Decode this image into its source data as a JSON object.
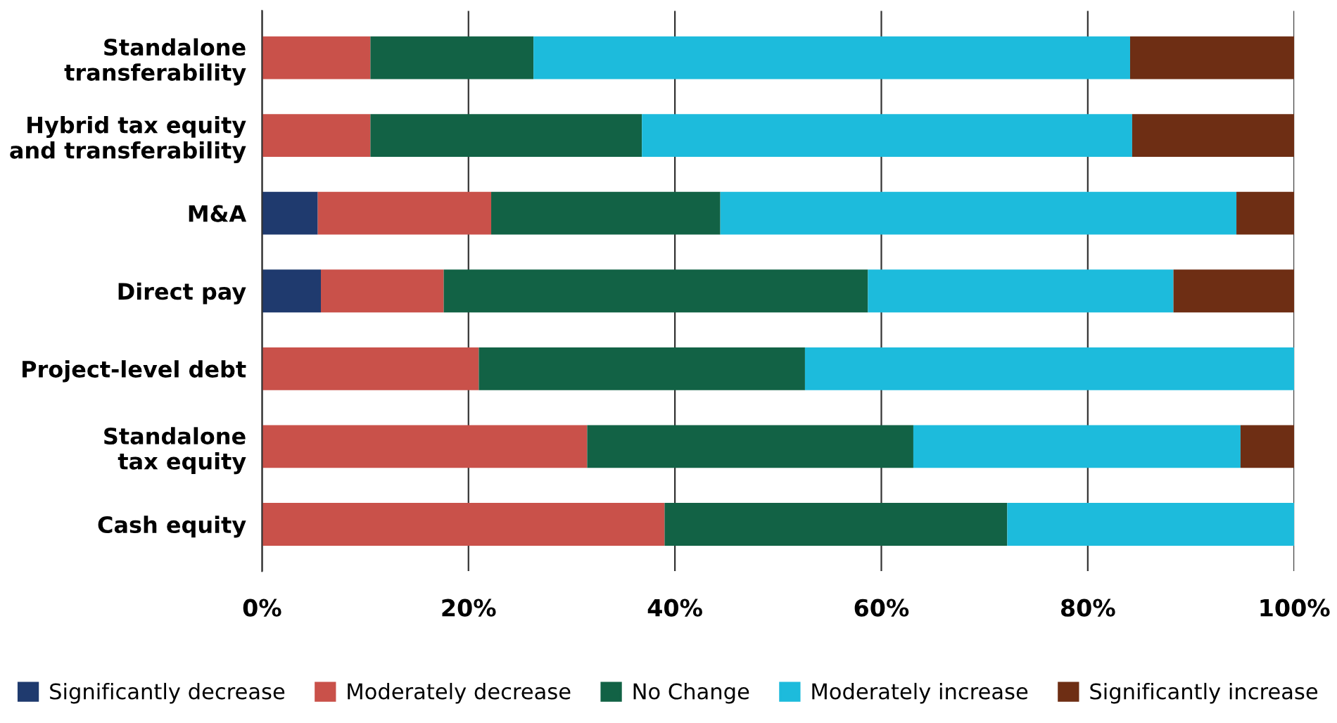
{
  "chart_data": {
    "type": "bar",
    "orientation": "horizontal",
    "stacked": true,
    "categories": [
      "Standalone\ntransferability",
      "Hybrid tax equity\nand transferability",
      "M&A",
      "Direct pay",
      "Project-level debt",
      "Standalone\ntax equity",
      "Cash equity"
    ],
    "series": [
      {
        "name": "Significantly decrease",
        "color": "#1f3a6e",
        "values": [
          0,
          0,
          5.4,
          5.7,
          0,
          0,
          0
        ]
      },
      {
        "name": "Moderately decrease",
        "color": "#c9514a",
        "values": [
          10.5,
          10.5,
          16.8,
          11.9,
          21,
          31.5,
          39
        ]
      },
      {
        "name": "No Change",
        "color": "#126245",
        "values": [
          15.8,
          26.3,
          22.2,
          41.1,
          31.6,
          31.6,
          33.2
        ]
      },
      {
        "name": "Moderately increase",
        "color": "#1dbbdc",
        "values": [
          57.8,
          47.5,
          50,
          29.6,
          47.4,
          31.7,
          27.8
        ]
      },
      {
        "name": "Significantly increase",
        "color": "#6e2e14",
        "values": [
          15.9,
          15.7,
          5.6,
          11.7,
          0,
          5.2,
          0
        ]
      }
    ],
    "xlim": [
      0,
      100
    ],
    "xticks": [
      {
        "value": 0,
        "label": "0%"
      },
      {
        "value": 20,
        "label": "20%"
      },
      {
        "value": 40,
        "label": "40%"
      },
      {
        "value": 60,
        "label": "60%"
      },
      {
        "value": 80,
        "label": "80%"
      },
      {
        "value": 100,
        "label": "100%"
      }
    ],
    "grid": "x",
    "legend": "bottom"
  }
}
